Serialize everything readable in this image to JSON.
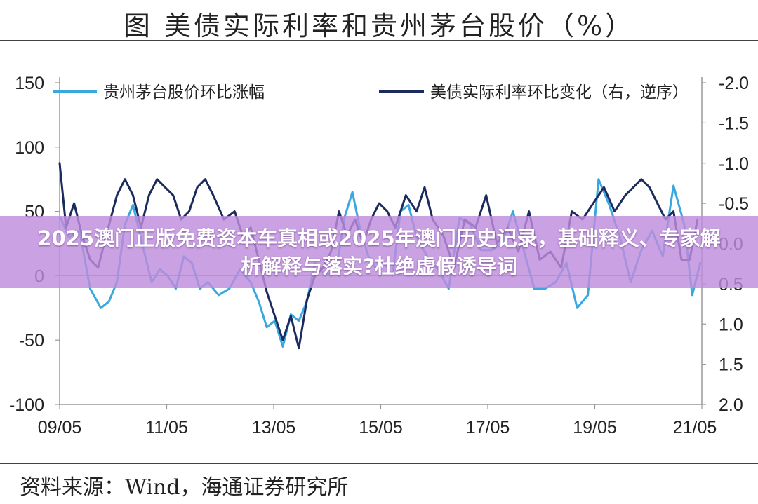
{
  "figure_title": "图  美债实际利率和贵州茅台股价（%）",
  "source": "资料来源：Wind，海通证券研究所",
  "overlay_banner": "2025澳门正版免费资本车真相或2025年澳门历史记录，基础释义、专家解析解释与落实?杜绝虚假诱导词",
  "chart_data": {
    "type": "line",
    "x_ticks": [
      "09/05",
      "11/05",
      "13/05",
      "15/05",
      "17/05",
      "19/05",
      "21/05"
    ],
    "x_range": [
      2009.33,
      2021.33
    ],
    "y_left": {
      "range": [
        -100,
        150
      ],
      "ticks": [
        "150",
        "100",
        "50",
        "0",
        "-50",
        "-100"
      ]
    },
    "y_right": {
      "range": [
        -2.0,
        2.0
      ],
      "inverted": true,
      "ticks": [
        "-2.0",
        "-1.5",
        "-1.0",
        "-0.5",
        "0.0",
        "0.5",
        "1.0",
        "1.5",
        "2.0"
      ]
    },
    "grid": false,
    "legend": "top",
    "series": [
      {
        "name": "贵州茅台股价环比涨幅",
        "axis": "left",
        "color": "#3aa8e0",
        "x": [
          2009.35,
          2009.5,
          2009.7,
          2009.9,
          2010.1,
          2010.25,
          2010.4,
          2010.55,
          2010.7,
          2010.9,
          2011.05,
          2011.2,
          2011.35,
          2011.5,
          2011.65,
          2011.8,
          2011.95,
          2012.1,
          2012.3,
          2012.5,
          2012.7,
          2012.9,
          2013.05,
          2013.2,
          2013.35,
          2013.5,
          2013.65,
          2013.8,
          2013.95,
          2014.1,
          2014.3,
          2014.5,
          2014.65,
          2014.8,
          2014.95,
          2015.1,
          2015.25,
          2015.4,
          2015.55,
          2015.7,
          2015.85,
          2016.0,
          2016.2,
          2016.4,
          2016.6,
          2016.8,
          2017.0,
          2017.2,
          2017.4,
          2017.6,
          2017.8,
          2018.0,
          2018.2,
          2018.4,
          2018.6,
          2018.8,
          2019.0,
          2019.2,
          2019.4,
          2019.6,
          2019.8,
          2020.0,
          2020.2,
          2020.4,
          2020.6,
          2020.8,
          2021.0,
          2021.15,
          2021.3
        ],
        "y": [
          45,
          30,
          35,
          -10,
          -25,
          -20,
          -5,
          40,
          55,
          20,
          -5,
          5,
          0,
          -10,
          15,
          10,
          -10,
          -5,
          -15,
          -10,
          5,
          -5,
          -20,
          -40,
          -35,
          -55,
          -30,
          -35,
          -20,
          10,
          0,
          5,
          45,
          65,
          35,
          15,
          5,
          10,
          0,
          50,
          55,
          30,
          15,
          5,
          -10,
          45,
          40,
          20,
          20,
          25,
          50,
          20,
          -10,
          -10,
          -5,
          10,
          -25,
          -15,
          75,
          55,
          30,
          -5,
          20,
          35,
          15,
          70,
          40,
          -15,
          10
        ]
      },
      {
        "name": "美债实际利率环比变化（右，逆序）",
        "axis": "right",
        "color": "#1c2b5e",
        "x": [
          2009.33,
          2009.45,
          2009.6,
          2009.75,
          2009.9,
          2010.05,
          2010.2,
          2010.4,
          2010.55,
          2010.7,
          2010.85,
          2011.0,
          2011.15,
          2011.3,
          2011.45,
          2011.6,
          2011.75,
          2011.9,
          2012.05,
          2012.2,
          2012.4,
          2012.6,
          2012.75,
          2012.9,
          2013.05,
          2013.2,
          2013.35,
          2013.5,
          2013.65,
          2013.8,
          2013.95,
          2014.1,
          2014.25,
          2014.4,
          2014.55,
          2014.7,
          2014.85,
          2015.0,
          2015.15,
          2015.3,
          2015.45,
          2015.6,
          2015.8,
          2016.0,
          2016.15,
          2016.3,
          2016.5,
          2016.7,
          2016.9,
          2017.1,
          2017.3,
          2017.5,
          2017.7,
          2017.9,
          2018.1,
          2018.3,
          2018.5,
          2018.7,
          2018.9,
          2019.1,
          2019.3,
          2019.5,
          2019.7,
          2019.9,
          2020.05,
          2020.2,
          2020.35,
          2020.5,
          2020.65,
          2020.8,
          2020.95,
          2021.1,
          2021.25
        ],
        "y": [
          -1.0,
          -0.2,
          -0.5,
          -0.1,
          0.2,
          0.3,
          -0.1,
          -0.6,
          -0.8,
          -0.6,
          -0.2,
          -0.6,
          -0.8,
          -0.7,
          -0.6,
          -0.3,
          -0.4,
          -0.7,
          -0.8,
          -0.6,
          -0.3,
          -0.4,
          -0.1,
          -0.2,
          0.2,
          0.6,
          0.9,
          1.2,
          0.9,
          1.3,
          0.7,
          0.4,
          0.3,
          0.1,
          -0.4,
          -0.1,
          -0.3,
          0.0,
          -0.3,
          -0.5,
          -0.4,
          -0.2,
          -0.6,
          -0.4,
          -0.7,
          -0.3,
          -0.1,
          0.3,
          -0.3,
          -0.2,
          -0.6,
          0.0,
          -0.2,
          0.1,
          -0.4,
          0.2,
          0.1,
          0.3,
          -0.4,
          -0.3,
          -0.5,
          -0.7,
          -0.4,
          -0.6,
          -0.7,
          -0.8,
          -0.7,
          -0.5,
          -0.3,
          -0.4,
          0.2,
          0.2,
          -0.3
        ]
      }
    ]
  }
}
